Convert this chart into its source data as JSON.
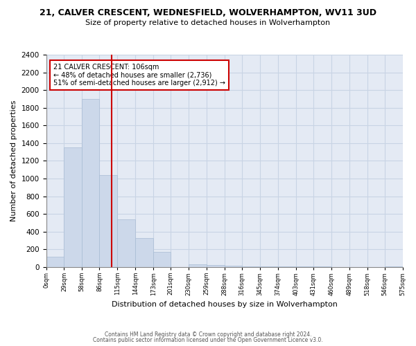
{
  "title": "21, CALVER CRESCENT, WEDNESFIELD, WOLVERHAMPTON, WV11 3UD",
  "subtitle": "Size of property relative to detached houses in Wolverhampton",
  "xlabel": "Distribution of detached houses by size in Wolverhampton",
  "ylabel": "Number of detached properties",
  "bar_edges": [
    0,
    29,
    58,
    86,
    115,
    144,
    173,
    201,
    230,
    259,
    288,
    316,
    345,
    374,
    403,
    431,
    460,
    489,
    518,
    546,
    575
  ],
  "bar_heights": [
    120,
    1350,
    1900,
    1040,
    540,
    330,
    170,
    0,
    30,
    20,
    15,
    10,
    5,
    5,
    5,
    5,
    0,
    0,
    0,
    10
  ],
  "bar_color": "#ccd8ea",
  "bar_edge_color": "#a8bcd4",
  "property_size": 106,
  "vline_color": "#cc0000",
  "annotation_text": "21 CALVER CRESCENT: 106sqm\n← 48% of detached houses are smaller (2,736)\n51% of semi-detached houses are larger (2,912) →",
  "annotation_box_color": "#ffffff",
  "annotation_box_edge_color": "#cc0000",
  "ylim": [
    0,
    2400
  ],
  "yticks": [
    0,
    200,
    400,
    600,
    800,
    1000,
    1200,
    1400,
    1600,
    1800,
    2000,
    2200,
    2400
  ],
  "footer1": "Contains HM Land Registry data © Crown copyright and database right 2024.",
  "footer2": "Contains public sector information licensed under the Open Government Licence v3.0.",
  "grid_color": "#c8d4e4",
  "background_color": "#e4eaf4",
  "fig_background": "#ffffff",
  "title_fontsize": 9,
  "subtitle_fontsize": 8,
  "ylabel_fontsize": 8,
  "xlabel_fontsize": 8,
  "ytick_fontsize": 7.5,
  "xtick_fontsize": 6,
  "annotation_fontsize": 7,
  "footer_fontsize": 5.5
}
